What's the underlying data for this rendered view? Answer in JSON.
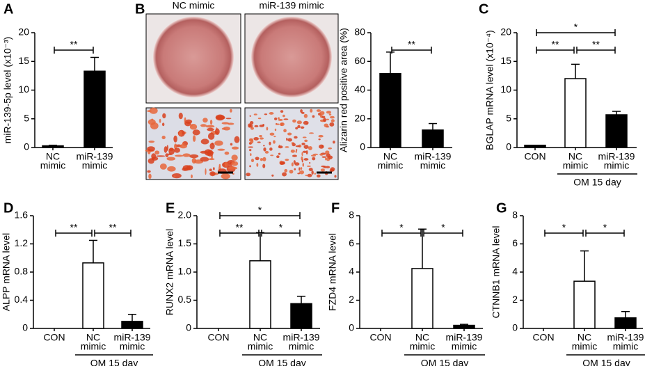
{
  "chart_data": [
    {
      "type": "bar",
      "panel": "A",
      "ylabel": "miR-139-5p level (x10⁻³)",
      "categories": [
        [
          "NC",
          "mimic"
        ],
        [
          "miR-139",
          "mimic"
        ]
      ],
      "values": [
        0.3,
        13.3
      ],
      "errors": [
        0.1,
        2.4
      ],
      "colors": [
        "#000000",
        "#000000"
      ],
      "ylim": [
        0,
        20
      ],
      "yticks": [
        0,
        5,
        10,
        15,
        20
      ],
      "brackets": [
        {
          "from": 0,
          "to": 1,
          "label": "**"
        }
      ]
    },
    {
      "type": "bar",
      "panel": "B",
      "ylabel": "Alizarin red positive area (%)",
      "image_labels": [
        "NC mimic",
        "miR-139 mimic"
      ],
      "categories": [
        [
          "NC",
          "mimic"
        ],
        [
          "miR-139",
          "mimic"
        ]
      ],
      "values": [
        51.5,
        12.2
      ],
      "errors": [
        15,
        4.5
      ],
      "colors": [
        "#000000",
        "#000000"
      ],
      "ylim": [
        0,
        80
      ],
      "yticks": [
        0,
        20,
        40,
        60,
        80
      ],
      "brackets": [
        {
          "from": 0,
          "to": 1,
          "label": "**"
        }
      ]
    },
    {
      "type": "bar",
      "panel": "C",
      "ylabel": "BGLAP mRNA level (x10⁻⁴)",
      "categories": [
        [
          "CON"
        ],
        [
          "NC",
          "mimic"
        ],
        [
          "miR-139",
          "mimic"
        ]
      ],
      "values": [
        0.4,
        12.0,
        5.7
      ],
      "errors": [
        0,
        2.5,
        0.6
      ],
      "colors": [
        "#000000",
        "#ffffff",
        "#000000"
      ],
      "ylim": [
        0,
        20
      ],
      "yticks": [
        0,
        5,
        10,
        15,
        20
      ],
      "brackets": [
        {
          "from": 0,
          "to": 1,
          "label": "**"
        },
        {
          "from": 1,
          "to": 2,
          "label": "**"
        },
        {
          "from": 0,
          "to": 2,
          "label": "*"
        }
      ],
      "group_label": "OM 15 day",
      "group": [
        1,
        2
      ]
    },
    {
      "type": "bar",
      "panel": "D",
      "ylabel": "ALPP mRNA level",
      "categories": [
        [
          "CON"
        ],
        [
          "NC",
          "mimic"
        ],
        [
          "miR-139",
          "mimic"
        ]
      ],
      "values": [
        0,
        0.93,
        0.1
      ],
      "errors": [
        0,
        0.32,
        0.1
      ],
      "colors": [
        "#000000",
        "#ffffff",
        "#000000"
      ],
      "ylim": [
        0,
        1.6
      ],
      "yticks": [
        0,
        0.4,
        0.8,
        1.2,
        1.6
      ],
      "brackets": [
        {
          "from": 0,
          "to": 1,
          "label": "**"
        },
        {
          "from": 1,
          "to": 2,
          "label": "**"
        }
      ],
      "group_label": "OM 15 day",
      "group": [
        1,
        2
      ]
    },
    {
      "type": "bar",
      "panel": "E",
      "ylabel": "RUNX2 mRNA level",
      "categories": [
        [
          "CON"
        ],
        [
          "NC",
          "mimic"
        ],
        [
          "miR-139",
          "mimic"
        ]
      ],
      "values": [
        0,
        1.2,
        0.44
      ],
      "errors": [
        0,
        0.5,
        0.13
      ],
      "colors": [
        "#000000",
        "#ffffff",
        "#000000"
      ],
      "ylim": [
        0,
        2
      ],
      "yticks": [
        0,
        0.5,
        {
          "value": 1,
          "label": "1.0"
        },
        1.5,
        {
          "value": 2,
          "label": "2.0"
        }
      ],
      "brackets": [
        {
          "from": 0,
          "to": 1,
          "label": "**"
        },
        {
          "from": 1,
          "to": 2,
          "label": "*"
        },
        {
          "from": 0,
          "to": 2,
          "label": "*"
        }
      ],
      "group_label": "OM 15 day",
      "group": [
        1,
        2
      ]
    },
    {
      "type": "bar",
      "panel": "F",
      "ylabel": "FZD4 mRNA level",
      "categories": [
        [
          "CON"
        ],
        [
          "NC",
          "mimic"
        ],
        [
          "miR-139",
          "mimic"
        ]
      ],
      "values": [
        0,
        4.25,
        0.22
      ],
      "errors": [
        0,
        2.8,
        0.07
      ],
      "colors": [
        "#000000",
        "#ffffff",
        "#000000"
      ],
      "ylim": [
        0,
        8
      ],
      "yticks": [
        0,
        2,
        4,
        6,
        8
      ],
      "brackets": [
        {
          "from": 0,
          "to": 1,
          "label": "*"
        },
        {
          "from": 1,
          "to": 2,
          "label": "*"
        }
      ],
      "group_label": "OM 15 day",
      "group": [
        1,
        2
      ]
    },
    {
      "type": "bar",
      "panel": "G",
      "ylabel": "CTNNB1 mRNA level",
      "categories": [
        [
          "CON"
        ],
        [
          "NC",
          "mimic"
        ],
        [
          "miR-139",
          "mimic"
        ]
      ],
      "values": [
        0,
        3.35,
        0.75
      ],
      "errors": [
        0,
        2.15,
        0.45
      ],
      "colors": [
        "#000000",
        "#ffffff",
        "#000000"
      ],
      "ylim": [
        0,
        8
      ],
      "yticks": [
        0,
        2,
        4,
        6,
        8
      ],
      "brackets": [
        {
          "from": 0,
          "to": 1,
          "label": "*"
        },
        {
          "from": 1,
          "to": 2,
          "label": "*"
        }
      ],
      "group_label": "OM 15 day",
      "group": [
        1,
        2
      ]
    }
  ]
}
